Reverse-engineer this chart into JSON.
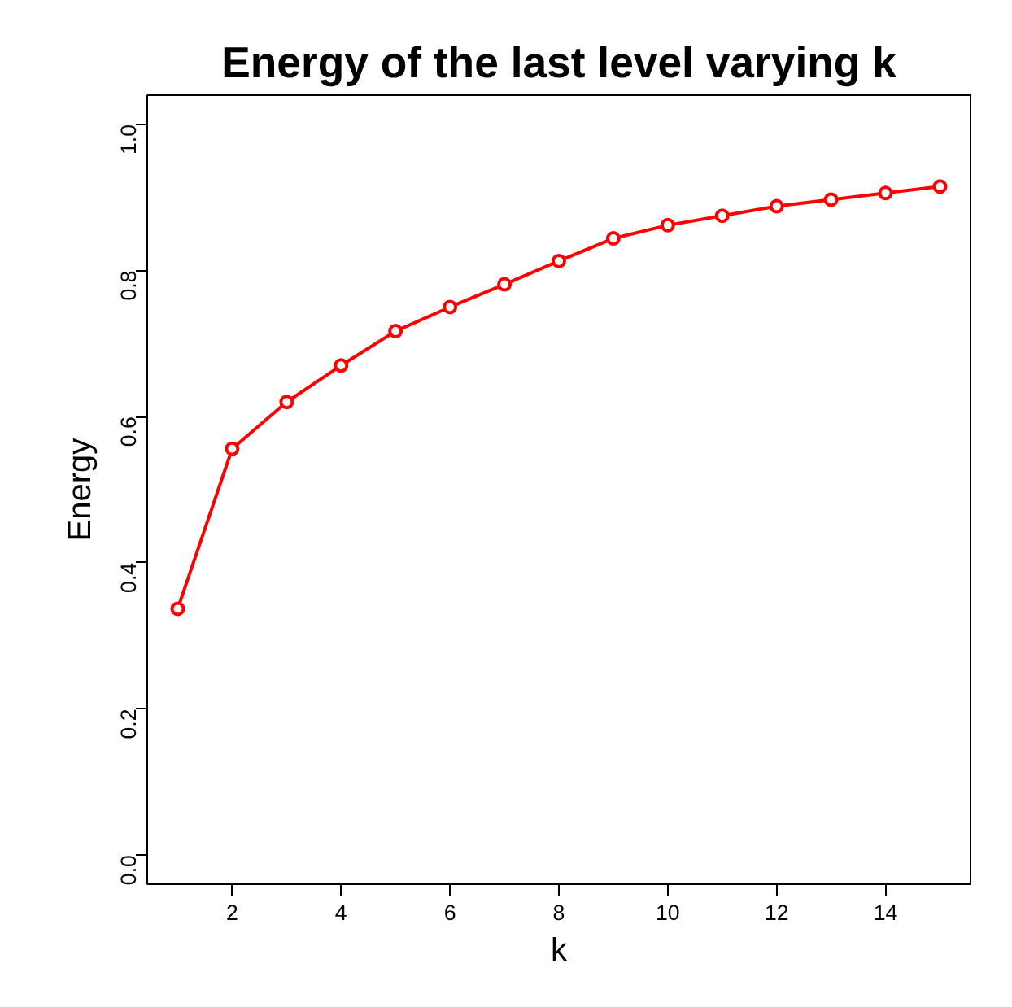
{
  "chart_data": {
    "type": "line",
    "title": "Energy of the last level varying k",
    "xlabel": "k",
    "ylabel": "Energy",
    "x": [
      1,
      2,
      3,
      4,
      5,
      6,
      7,
      8,
      9,
      10,
      11,
      12,
      13,
      14,
      15
    ],
    "series": [
      {
        "color": "#ff0000",
        "values": [
          0.337,
          0.556,
          0.62,
          0.67,
          0.717,
          0.75,
          0.781,
          0.813,
          0.844,
          0.862,
          0.875,
          0.888,
          0.897,
          0.906,
          0.915
        ]
      }
    ],
    "xlim": [
      0.44,
      15.56
    ],
    "ylim": [
      -0.04,
      1.04
    ],
    "xticks": [
      2,
      4,
      6,
      8,
      10,
      12,
      14
    ],
    "yticks": [
      {
        "value": 0,
        "label": "0.0"
      },
      {
        "value": 0.2,
        "label": "0.2"
      },
      {
        "value": 0.4,
        "label": "0.4"
      },
      {
        "value": 0.6,
        "label": "0.6"
      },
      {
        "value": 0.8,
        "label": "0.8"
      },
      {
        "value": 1,
        "label": "1.0"
      }
    ],
    "marker": "circle",
    "line_style": "solid"
  }
}
